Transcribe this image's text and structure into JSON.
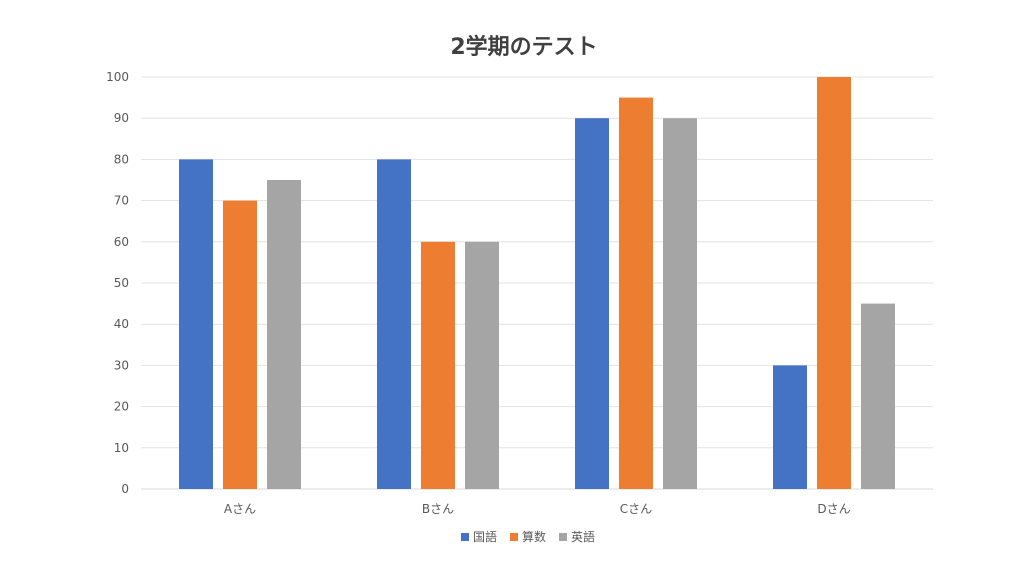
{
  "chart_data": {
    "type": "bar",
    "title": "2学期のテスト",
    "xlabel": "",
    "ylabel": "",
    "categories": [
      "Aさん",
      "Bさん",
      "Cさん",
      "Dさん"
    ],
    "series": [
      {
        "name": "国語",
        "values": [
          80,
          80,
          90,
          30
        ]
      },
      {
        "name": "算数",
        "values": [
          70,
          60,
          95,
          100
        ]
      },
      {
        "name": "英語",
        "values": [
          75,
          60,
          90,
          45
        ]
      }
    ],
    "ylim": [
      0,
      100
    ],
    "yticks": [
      "0",
      "10",
      "20",
      "30",
      "40",
      "50",
      "60",
      "70",
      "80",
      "90",
      "100"
    ],
    "grid": true,
    "legend_position": "bottom",
    "colors": {
      "series": [
        "#4472c4",
        "#ed7d31",
        "#a5a5a5"
      ],
      "grid": "#e3e3e3",
      "axis_text": "#595959",
      "title": "#404040"
    }
  }
}
